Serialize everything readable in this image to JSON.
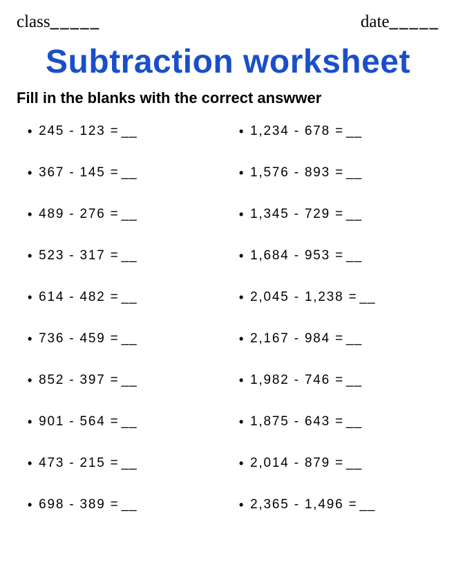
{
  "header": {
    "class_label": "class",
    "date_label": "date",
    "blank": "_____"
  },
  "title": {
    "main": "Subtraction worksheet",
    "sub": "Fill in the blanks with the correct answwer",
    "main_color": "#1a4fc9",
    "main_fontsize": 48,
    "sub_fontsize": 22
  },
  "answer_blank": "__",
  "problems_left": [
    "245 - 123 = ",
    "367 - 145 = ",
    "489 - 276 = ",
    "523 - 317 = ",
    "614 - 482 = ",
    "736 - 459 = ",
    "852 - 397 = ",
    "901 - 564 = ",
    "473 - 215 = ",
    "698 - 389 = "
  ],
  "problems_right": [
    "1,234 - 678 = ",
    "1,576 - 893 = ",
    "1,345 - 729 = ",
    "1,684 - 953 = ",
    "2,045 - 1,238 = ",
    "2,167 - 984 = ",
    "1,982 - 746 = ",
    "1,875 - 643 = ",
    "2,014 - 879 = ",
    "2,365 - 1,496 = "
  ],
  "styling": {
    "background_color": "#ffffff",
    "text_color": "#000000",
    "problem_fontsize": 19,
    "row_gap": 38,
    "letter_spacing": 1.8
  }
}
